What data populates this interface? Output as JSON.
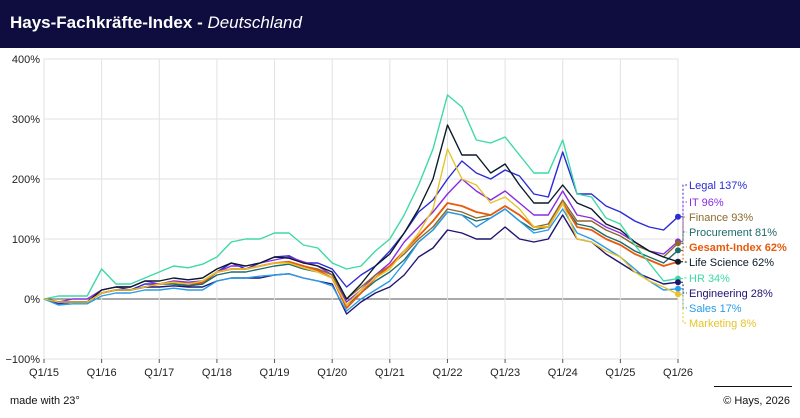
{
  "header": {
    "title": "Hays-Fachkräfte-Index",
    "separator": " - ",
    "subtitle": "Deutschland"
  },
  "footer": {
    "left": "made with 23°",
    "right": "© Hays, 2026"
  },
  "chart_data": {
    "type": "line",
    "title": "Hays-Fachkräfte-Index - Deutschland",
    "xlabel": "",
    "ylabel": "",
    "ylim": [
      -100,
      400
    ],
    "y_ticks": [
      -100,
      0,
      100,
      200,
      300,
      400
    ],
    "y_tick_labels": [
      "−100%",
      "0%",
      "100%",
      "200%",
      "300%",
      "400%"
    ],
    "x_tick_labels": [
      "Q1/15",
      "Q1/16",
      "Q1/17",
      "Q1/18",
      "Q1/19",
      "Q1/20",
      "Q1/21",
      "Q1/22",
      "Q1/23",
      "Q1/24",
      "Q1/25",
      "Q1/26"
    ],
    "grid": true,
    "legend_position": "right",
    "x": [
      "Q1/15",
      "Q2/15",
      "Q3/15",
      "Q4/15",
      "Q1/16",
      "Q2/16",
      "Q3/16",
      "Q4/16",
      "Q1/17",
      "Q2/17",
      "Q3/17",
      "Q4/17",
      "Q1/18",
      "Q2/18",
      "Q3/18",
      "Q4/18",
      "Q1/19",
      "Q2/19",
      "Q3/19",
      "Q4/19",
      "Q1/20",
      "Q2/20",
      "Q3/20",
      "Q4/20",
      "Q1/21",
      "Q2/21",
      "Q3/21",
      "Q4/21",
      "Q1/22",
      "Q2/22",
      "Q3/22",
      "Q4/22",
      "Q1/23",
      "Q2/23",
      "Q3/23",
      "Q4/23",
      "Q1/24",
      "Q2/24",
      "Q3/24",
      "Q4/24",
      "Q1/25",
      "Q2/25",
      "Q3/25",
      "Q4/25",
      "Q1/26"
    ],
    "series": [
      {
        "name": "Legal",
        "value_label": "137%",
        "color": "#2b2bd6",
        "values": [
          0,
          -8,
          -5,
          -5,
          15,
          20,
          15,
          25,
          25,
          30,
          22,
          25,
          45,
          60,
          50,
          60,
          70,
          72,
          60,
          60,
          50,
          20,
          40,
          55,
          80,
          110,
          145,
          165,
          200,
          230,
          210,
          200,
          215,
          205,
          175,
          170,
          245,
          175,
          175,
          155,
          145,
          130,
          120,
          115,
          137
        ]
      },
      {
        "name": "IT",
        "value_label": "96%",
        "color": "#8a2be2",
        "values": [
          0,
          -5,
          0,
          0,
          15,
          20,
          20,
          30,
          25,
          30,
          28,
          30,
          45,
          55,
          55,
          60,
          65,
          70,
          62,
          55,
          40,
          -5,
          15,
          40,
          60,
          95,
          120,
          145,
          175,
          200,
          180,
          165,
          180,
          160,
          140,
          140,
          180,
          140,
          135,
          120,
          110,
          95,
          80,
          75,
          96
        ]
      },
      {
        "name": "Finance",
        "value_label": "93%",
        "color": "#8b6a2b",
        "values": [
          0,
          -5,
          -5,
          -5,
          10,
          15,
          15,
          20,
          25,
          28,
          25,
          25,
          45,
          50,
          50,
          55,
          60,
          62,
          55,
          50,
          40,
          0,
          20,
          40,
          55,
          75,
          100,
          120,
          150,
          145,
          135,
          140,
          155,
          140,
          120,
          125,
          165,
          130,
          130,
          115,
          105,
          90,
          80,
          70,
          93
        ]
      },
      {
        "name": "Procurement",
        "value_label": "81%",
        "color": "#1d6b6b",
        "values": [
          0,
          -5,
          -5,
          -5,
          10,
          15,
          15,
          20,
          25,
          25,
          22,
          25,
          40,
          45,
          45,
          50,
          55,
          58,
          50,
          45,
          35,
          -10,
          10,
          30,
          45,
          65,
          95,
          115,
          145,
          140,
          130,
          135,
          150,
          130,
          115,
          120,
          160,
          125,
          120,
          105,
          95,
          80,
          70,
          60,
          81
        ]
      },
      {
        "name": "Gesamt-Index",
        "value_label": "62%",
        "color": "#e85a0c",
        "values": [
          0,
          -5,
          -5,
          -5,
          10,
          15,
          15,
          20,
          25,
          28,
          25,
          28,
          45,
          50,
          50,
          55,
          60,
          62,
          55,
          48,
          35,
          -15,
          10,
          35,
          55,
          80,
          105,
          130,
          160,
          155,
          145,
          140,
          155,
          140,
          120,
          120,
          160,
          120,
          115,
          100,
          90,
          75,
          65,
          55,
          62
        ]
      },
      {
        "name": "Life Science",
        "value_label": "62%",
        "color": "#0a1a2a",
        "values": [
          0,
          -5,
          -5,
          -5,
          15,
          20,
          20,
          30,
          30,
          35,
          32,
          35,
          50,
          60,
          55,
          60,
          70,
          68,
          60,
          55,
          45,
          0,
          25,
          55,
          75,
          110,
          150,
          200,
          290,
          240,
          240,
          210,
          225,
          190,
          160,
          160,
          190,
          160,
          150,
          125,
          115,
          95,
          80,
          70,
          62
        ]
      },
      {
        "name": "HR",
        "value_label": "34%",
        "color": "#3dd9a8",
        "values": [
          0,
          5,
          5,
          5,
          50,
          25,
          25,
          35,
          45,
          55,
          52,
          58,
          70,
          95,
          100,
          100,
          110,
          110,
          90,
          85,
          60,
          50,
          55,
          80,
          100,
          140,
          190,
          250,
          340,
          320,
          265,
          260,
          270,
          240,
          210,
          210,
          265,
          175,
          170,
          135,
          125,
          90,
          60,
          30,
          34
        ]
      },
      {
        "name": "Engineering",
        "value_label": "28%",
        "color": "#1f1470",
        "values": [
          0,
          -5,
          -5,
          -5,
          10,
          15,
          15,
          20,
          20,
          22,
          20,
          20,
          30,
          35,
          35,
          35,
          40,
          42,
          35,
          30,
          25,
          -25,
          -5,
          10,
          20,
          40,
          70,
          85,
          115,
          110,
          100,
          100,
          120,
          100,
          95,
          100,
          140,
          100,
          95,
          75,
          60,
          45,
          35,
          25,
          28
        ]
      },
      {
        "name": "Sales",
        "value_label": "17%",
        "color": "#2a9be8",
        "values": [
          0,
          -10,
          -8,
          -8,
          5,
          10,
          10,
          15,
          15,
          18,
          15,
          15,
          30,
          35,
          35,
          38,
          40,
          42,
          35,
          30,
          22,
          -20,
          0,
          15,
          30,
          60,
          95,
          115,
          145,
          140,
          120,
          135,
          150,
          130,
          110,
          115,
          150,
          110,
          100,
          85,
          70,
          50,
          30,
          15,
          17
        ]
      },
      {
        "name": "Marketing",
        "value_label": "8%",
        "color": "#e6c42a",
        "values": [
          0,
          -5,
          -5,
          -5,
          10,
          15,
          15,
          20,
          25,
          28,
          25,
          30,
          45,
          50,
          50,
          55,
          60,
          60,
          52,
          45,
          35,
          -10,
          15,
          35,
          50,
          80,
          110,
          150,
          250,
          200,
          190,
          160,
          170,
          150,
          120,
          120,
          160,
          100,
          95,
          80,
          70,
          45,
          30,
          20,
          8
        ]
      }
    ]
  }
}
